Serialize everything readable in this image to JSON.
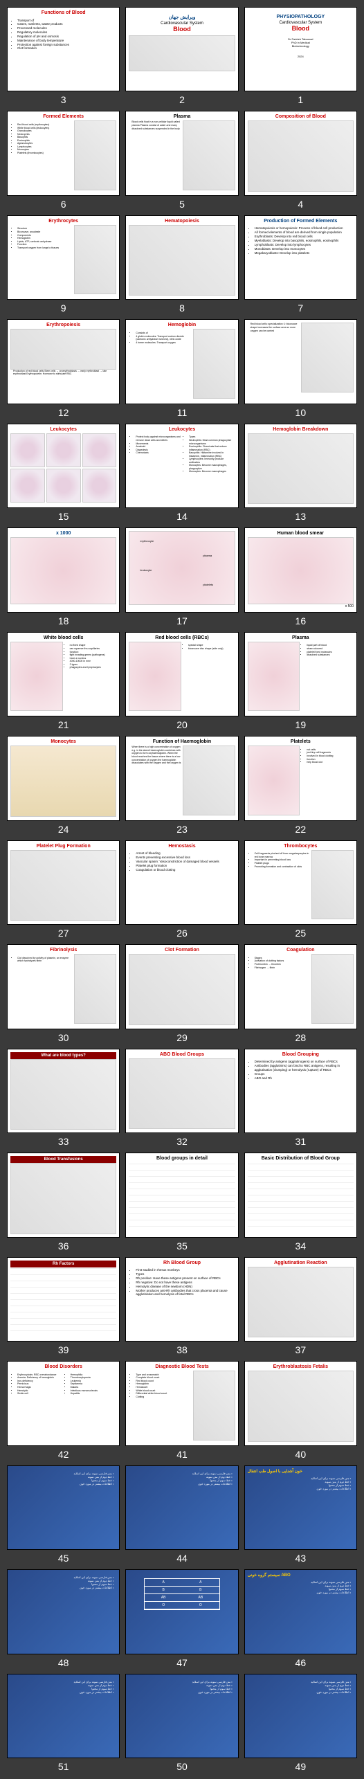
{
  "slides": [
    {
      "n": 1,
      "type": "title",
      "t1": "PHYSIOPATHOLOGY",
      "t2": "Cardiovascular System",
      "t3": "Blood",
      "sub": "Dr Farideh Tabarzad\nPhD in Medical\nBiotechnology",
      "footer": "2024"
    },
    {
      "n": 2,
      "type": "title",
      "t1": "ویرایش جهان",
      "t2": "Cardiovascular System",
      "t3": "Blood",
      "img": true
    },
    {
      "n": 3,
      "type": "bullets",
      "title": "Functions of Blood",
      "color": "red",
      "items": [
        "Transport of",
        "Gases, nutrients, waste products",
        "Processed molecules",
        "Regulatory molecules",
        "Regulation of pH and osmosis",
        "Maintenance of body temperature",
        "Protection against foreign substances",
        "Clot formation"
      ]
    },
    {
      "n": 4,
      "type": "diagram",
      "title": "Composition of Blood",
      "color": "red"
    },
    {
      "n": 5,
      "type": "text-img",
      "title": "Plasma",
      "text": "Blood cells float in a non-cellular liquid called plasma\n\nPlasma consist of water and many dissolved substances suspended in the body"
    },
    {
      "n": 6,
      "type": "bullets-img",
      "title": "Formed Elements",
      "color": "red",
      "items": [
        "Red blood cells (erythrocytes)",
        "White blood cells (leukocytes)",
        "Granulocytes",
        "  Neutrophils",
        "  Basophils",
        "  Eosinophils",
        "Agranulocytes",
        "  Lymphocytes",
        "  Monocytes",
        "Platelets (thrombocytes)"
      ]
    },
    {
      "n": 7,
      "type": "bullets",
      "title": "Production of Formed Elements",
      "color": "blue",
      "items": [
        "Hematopoiesis or hemopoiesis: Process of blood cell production",
        "All formed elements of blood are derived from single population",
        "Erythroblasts: Develop into red blood cells",
        "Myeloblasts: Develop into basophils, eosinophils, eosinophils",
        "Lymphoblasts: Develop into lymphocytes",
        "Monoblasts: Develop into monocytes",
        "Megakaryoblasts: Develop into platelets"
      ]
    },
    {
      "n": 8,
      "type": "diagram",
      "title": "Hematopoiesis",
      "color": "red"
    },
    {
      "n": 9,
      "type": "bullets-img",
      "title": "Erythrocytes",
      "color": "red",
      "items": [
        "Structure",
        "Biconcave, anucleate",
        "Components",
        "Hemoglobin",
        "Lipids, ATP, carbonic anhydrase",
        "Function",
        "Transport oxygen from lungs to tissues"
      ]
    },
    {
      "n": 10,
      "type": "text-img",
      "title": "",
      "text": "Red blood cells: specialization\n① biconcave shape\nincreases the surface area so more oxygen can be carried",
      "rtl": true
    },
    {
      "n": 11,
      "type": "bullets-img",
      "title": "Hemoglobin",
      "color": "red",
      "items": [
        "Consists of",
        "4 globin molecules: Transport carbon dioxide (carbonic anhydrase involved), nitric oxide",
        "4 heme molecules: Transport oxygen"
      ]
    },
    {
      "n": 12,
      "type": "diagram-text",
      "title": "Erythropoiesis",
      "color": "red",
      "text": "Production of red blood cells\nStem cells → proerythroblasts → early erythroblast → late erythroblast\nErythropoietin: Hormone to stimulate RBC"
    },
    {
      "n": 13,
      "type": "diagram",
      "title": "Hemoglobin Breakdown",
      "color": "red"
    },
    {
      "n": 14,
      "type": "two-col",
      "title": "Leukocytes",
      "color": "red",
      "left": [
        "Protect body against microorganisms and remove dead cells and debris",
        "Movements",
        "Ameboid",
        "Diapedesis",
        "Chemotaxis"
      ],
      "right": [
        "Types",
        "Neutrophils: Most common phagocytize microorganisms",
        "Eosinophils: Chemicals that reduce inflammation (RBC)",
        "Basophils: Histamine involved in histamine, inflammation (RBC)",
        "Lymphocytes: Immunity produce antibodies",
        "Monocytes: Become macrophages, phagocytize",
        "Monocytes: Become macrophages"
      ]
    },
    {
      "n": 15,
      "type": "cell-grid",
      "title": "Leukocytes",
      "color": "red"
    },
    {
      "n": 16,
      "type": "micro",
      "title": "Human blood smear",
      "label": "x 500"
    },
    {
      "n": 17,
      "type": "micro-labeled",
      "title": "",
      "labels": [
        "erythrocyte",
        "plasma",
        "leukocyte",
        "platelets"
      ]
    },
    {
      "n": 18,
      "type": "micro",
      "title": "x 1000",
      "color": "blue"
    },
    {
      "n": 19,
      "type": "micro-list",
      "title": "Plasma",
      "items": [
        "liquid part of blood",
        "straw coloured",
        "platelet fixed molecules",
        "dissolved substances"
      ]
    },
    {
      "n": 20,
      "type": "micro-list",
      "title": "Red blood cells (RBCs)",
      "items": [
        "special shape",
        "biconcave disc shape (side only)"
      ]
    },
    {
      "n": 21,
      "type": "micro-list",
      "title": "White blood cells",
      "items": [
        "no fixed shape",
        "can squeeze thru capillaries",
        "function:",
        "fight invading germs (pathogens)",
        "have a nucleus",
        "4000-10000 in mm³",
        "2 types",
        "phagocytes and lymphocytes"
      ]
    },
    {
      "n": 22,
      "type": "micro-list",
      "title": "Platelets",
      "items": [
        "not cells",
        "just tiny cell fragments",
        "involved in blood clotting",
        "function",
        "help blood clot"
      ]
    },
    {
      "n": 23,
      "type": "text-img",
      "title": "Function of Haemoglobin",
      "text": "When there is a high concentration of oxygen e.g. in the alveoli haemoglobin combines with oxygen to form oxyhaemoglobin. When the blood reaches the tissue where there is a low concentration of oxygen the haemoglobin dissociates with the oxygen and the oxygen is"
    },
    {
      "n": 24,
      "type": "img-labeled",
      "title": "Monocytes",
      "color": "red"
    },
    {
      "n": 25,
      "type": "bullets-img",
      "title": "Thrombocytes",
      "color": "red",
      "items": [
        "Cell fragments pinched off from megakaryocytes in red bone marrow",
        "Important in preventing blood loss",
        "Platelet plugs",
        "Promoting formation and contraction of clots"
      ]
    },
    {
      "n": 26,
      "type": "bullets",
      "title": "Hemostasis",
      "color": "red",
      "items": [
        "Arrest of bleeding",
        "Events preventing excessive blood loss",
        "Vascular spasm: Vasoconstriction of damaged blood vessels",
        "Platelet plug formation",
        "Coagulation or blood clotting"
      ]
    },
    {
      "n": 27,
      "type": "diagram",
      "title": "Platelet Plug Formation",
      "color": "red"
    },
    {
      "n": 28,
      "type": "bullets-img",
      "title": "Coagulation",
      "color": "red",
      "items": [
        "Stages",
        "Activation of clotting factors",
        "Prothrombin → thrombin",
        "Fibrinogen → fibrin"
      ]
    },
    {
      "n": 29,
      "type": "diagram",
      "title": "Clot Formation",
      "color": "red"
    },
    {
      "n": 30,
      "type": "bullets-img",
      "title": "Fibrinolysis",
      "color": "red",
      "items": [
        "Clot dissolved by activity of plasmin, an enzyme which hydrolyzes fibrin"
      ]
    },
    {
      "n": 31,
      "type": "bullets",
      "title": "Blood Grouping",
      "color": "red",
      "items": [
        "Determined by antigens (agglutinogens) on surface of RBCs",
        "Antibodies (agglutinins) can bind to RBC antigens, resulting in agglutination (clumping) or hemolysis (rupture) of RBCs",
        "Groups",
        "ABO and Rh"
      ]
    },
    {
      "n": 32,
      "type": "diagram",
      "title": "ABO Blood Groups",
      "color": "red"
    },
    {
      "n": 33,
      "type": "diagram",
      "title": "What are blood types?",
      "color": "red",
      "strip": true
    },
    {
      "n": 34,
      "type": "table",
      "title": "Basic Distribution of Blood Group"
    },
    {
      "n": 35,
      "type": "table",
      "title": "Blood groups in detail"
    },
    {
      "n": 36,
      "type": "diagram",
      "title": "Blood Transfusions",
      "strip": true
    },
    {
      "n": 37,
      "type": "diagram",
      "title": "Agglutination Reaction",
      "color": "red"
    },
    {
      "n": 38,
      "type": "bullets",
      "title": "Rh Blood Group",
      "color": "red",
      "items": [
        "First studied in rhesus monkeys",
        "Types",
        "Rh positive: Have these antigens present on surface of RBCs",
        "Rh negative: Do not have these antigens",
        "Hemolytic disease of the newborn (HDN)",
        "Mother produces anti-Rh antibodies that cross placenta and cause agglutination and hemolysis of fetal RBCs"
      ]
    },
    {
      "n": 39,
      "type": "table",
      "title": "Rh Factors",
      "strip": true
    },
    {
      "n": 40,
      "type": "diagram",
      "title": "Erythroblastosis Fetalis",
      "color": "red"
    },
    {
      "n": 41,
      "type": "bullets-img",
      "title": "Diagnostic Blood Tests",
      "color": "red",
      "items": [
        "Type and crossmatch",
        "Complete blood count",
        "Red blood count",
        "Hemoglobin",
        "Hematocrit",
        "White blood count",
        "Differential white blood count",
        "Clotting"
      ]
    },
    {
      "n": 42,
      "type": "two-col",
      "title": "Blood Disorders",
      "color": "red",
      "left": [
        "Erythrocytosis: RBC overabundance",
        "Anemia: Deficiency of hemoglobin",
        "Iron-deficiency",
        "Pernicious",
        "Hemorrhagic",
        "Hemolytic",
        "Sickle-cell"
      ],
      "right": [
        "Hemophilia",
        "Thrombocytopenia",
        "Leukemia",
        "Septicemia",
        "Malaria",
        "Infectious mononucleosis",
        "Hepatitis"
      ]
    },
    {
      "n": 43,
      "type": "blue",
      "title": "خون آشنایی با اصول طب انتقال",
      "body": true
    },
    {
      "n": 44,
      "type": "blue",
      "title": "",
      "body": true
    },
    {
      "n": 45,
      "type": "blue",
      "title": "",
      "body": true
    },
    {
      "n": 46,
      "type": "blue",
      "title": "سیستم گروه خونی ABO",
      "body": true
    },
    {
      "n": 47,
      "type": "blue",
      "title": "",
      "table": true
    },
    {
      "n": 48,
      "type": "blue",
      "title": "",
      "body": true
    },
    {
      "n": 49,
      "type": "blue",
      "title": "",
      "body": true
    },
    {
      "n": 50,
      "type": "blue",
      "title": "",
      "body": true
    },
    {
      "n": 51,
      "type": "blue",
      "title": "",
      "body": true
    }
  ]
}
